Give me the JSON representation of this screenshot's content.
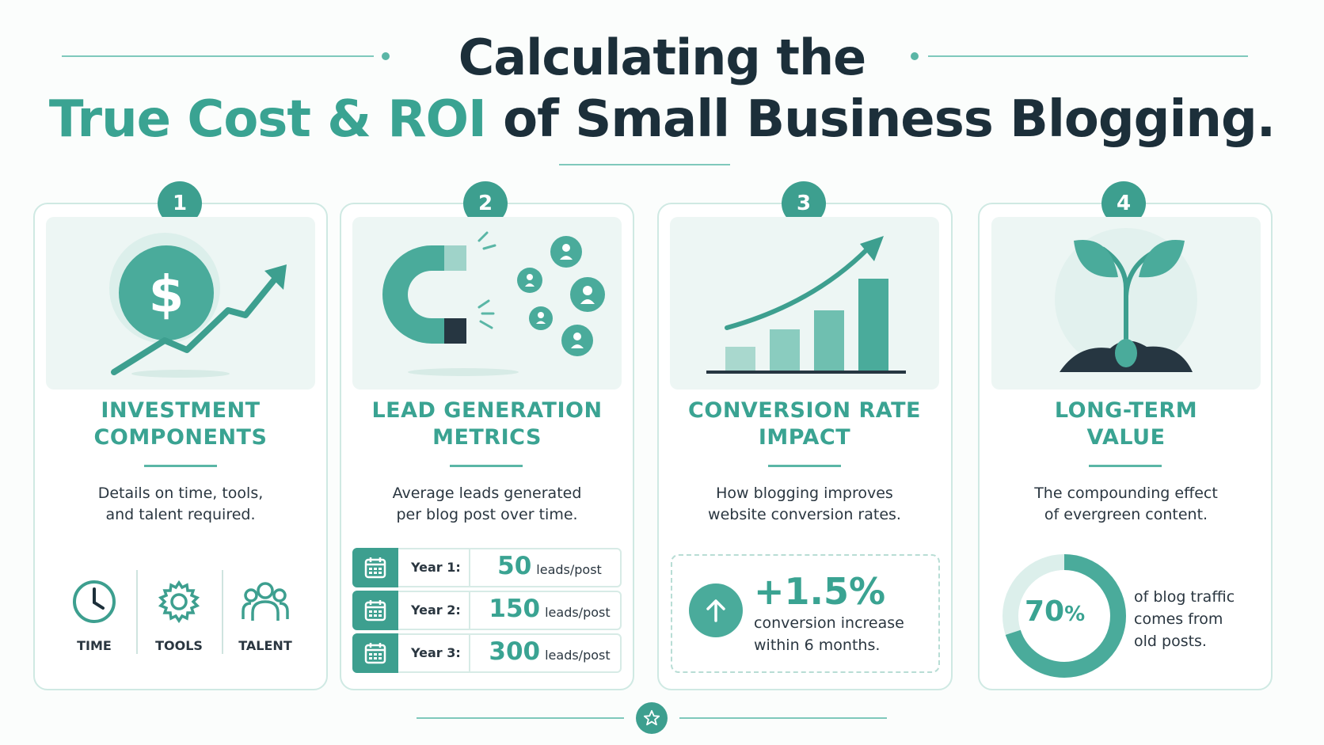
{
  "header": {
    "title_line1": "Calculating the",
    "title_accent": "True Cost & ROI",
    "title_rest": " of Small Business Blogging."
  },
  "cards": [
    {
      "number": "1",
      "title_line1": "INVESTMENT",
      "title_line2": "COMPONENTS",
      "desc_line1": "Details on time, tools,",
      "desc_line2": "and talent required.",
      "items": [
        {
          "label": "TIME",
          "icon": "clock-icon"
        },
        {
          "label": "TOOLS",
          "icon": "gear-icon"
        },
        {
          "label": "TALENT",
          "icon": "people-icon"
        }
      ]
    },
    {
      "number": "2",
      "title_line1": "LEAD GENERATION",
      "title_line2": "METRICS",
      "desc_line1": "Average leads generated",
      "desc_line2": "per blog post over time.",
      "rows": [
        {
          "year": "Year 1:",
          "value": "50",
          "unit": "leads/post"
        },
        {
          "year": "Year 2:",
          "value": "150",
          "unit": "leads/post"
        },
        {
          "year": "Year 3:",
          "value": "300",
          "unit": "leads/post"
        }
      ]
    },
    {
      "number": "3",
      "title_line1": "CONVERSION RATE",
      "title_line2": "IMPACT",
      "desc_line1": "How blogging improves",
      "desc_line2": "website conversion rates.",
      "stat_value": "+1.5%",
      "stat_line1": "conversion increase",
      "stat_line2": "within 6 months."
    },
    {
      "number": "4",
      "title_line1": "LONG-TERM",
      "title_line2": "VALUE",
      "desc_line1": "The compounding effect",
      "desc_line2": "of evergreen content.",
      "donut_number": "70",
      "donut_percent_sign": "%",
      "donut_fraction": 0.7,
      "stat_line1": "of blog traffic",
      "stat_line2": "comes from",
      "stat_line3": "old posts."
    }
  ],
  "colors": {
    "accent": "#3aa392",
    "badge": "#3d9f8f",
    "dark": "#1c2f3a",
    "light_bg": "#edf6f4"
  }
}
